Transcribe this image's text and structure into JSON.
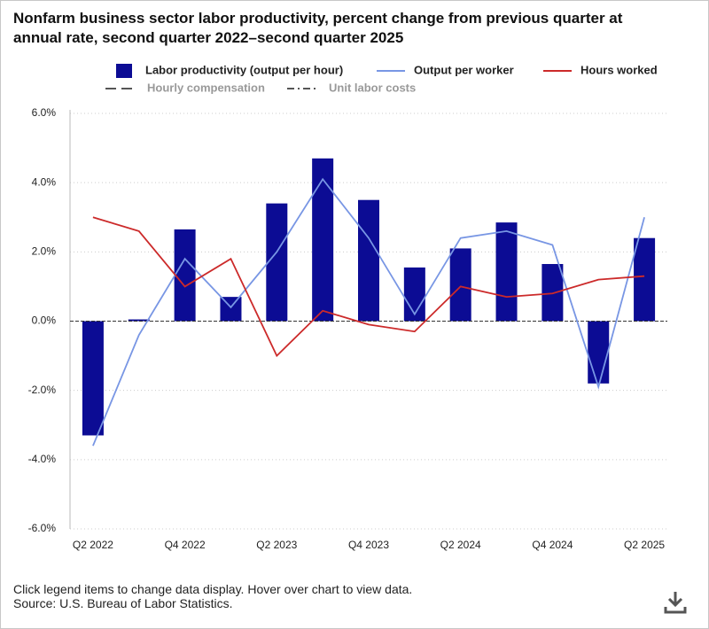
{
  "chart_data": {
    "type": "bar-line",
    "title": "Nonfarm business sector labor productivity, percent change from previous quarter at annual rate, second quarter 2022–second quarter 2025",
    "categories": [
      "Q2 2022",
      null,
      "Q4 2022",
      null,
      "Q2 2023",
      null,
      "Q4 2023",
      null,
      "Q2 2024",
      null,
      "Q4 2024",
      null,
      "Q2 2025"
    ],
    "series": [
      {
        "name": "Labor productivity (output per hour)",
        "type": "bar",
        "color": "#0c0c94",
        "values": [
          -3.3,
          0.05,
          2.65,
          0.7,
          3.4,
          4.7,
          3.5,
          1.55,
          2.1,
          2.85,
          1.65,
          -1.8,
          2.4
        ]
      },
      {
        "name": "Output per worker",
        "type": "line",
        "color": "#7896e4",
        "values": [
          -3.6,
          -0.4,
          1.8,
          0.4,
          2.0,
          4.1,
          2.4,
          0.2,
          2.4,
          2.6,
          2.2,
          -1.9,
          3.0
        ]
      },
      {
        "name": "Hours worked",
        "type": "line",
        "color": "#cc2a2a",
        "values": [
          3.0,
          2.6,
          1.0,
          1.8,
          -1.0,
          0.3,
          -0.1,
          -0.3,
          1.0,
          0.7,
          0.8,
          1.2,
          1.3
        ]
      }
    ],
    "hidden_legend": [
      {
        "name": "Hourly compensation",
        "dash": "dashed"
      },
      {
        "name": "Unit labor costs",
        "dash": "dash-dot"
      }
    ],
    "ylim": [
      -6,
      6
    ],
    "yticks": [
      {
        "value": -6,
        "label": "-6.0%"
      },
      {
        "value": -4,
        "label": "-4.0%"
      },
      {
        "value": -2,
        "label": "-2.0%"
      },
      {
        "value": 0,
        "label": "0.0%"
      },
      {
        "value": 2,
        "label": "2.0%"
      },
      {
        "value": 4,
        "label": "4.0%"
      },
      {
        "value": 6,
        "label": "6.0%"
      }
    ],
    "grid": true,
    "notes": [
      "Click legend items to change data display. Hover over chart to view data.",
      "Source: U.S. Bureau of Labor Statistics."
    ]
  }
}
